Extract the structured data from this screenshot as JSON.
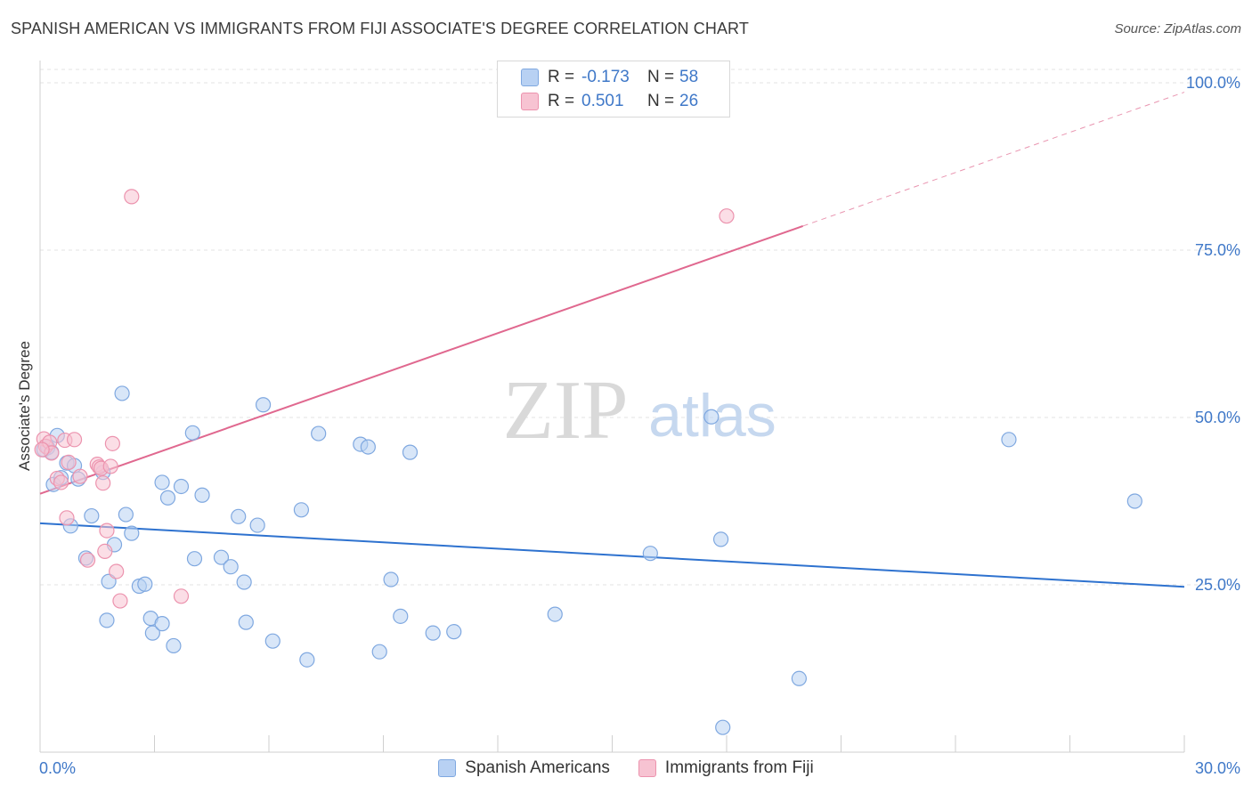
{
  "title": "SPANISH AMERICAN VS IMMIGRANTS FROM FIJI ASSOCIATE'S DEGREE CORRELATION CHART",
  "source": "Source: ZipAtlas.com",
  "watermark": {
    "zip": "ZIP",
    "atlas": "atlas"
  },
  "legend_stats": [
    {
      "r_label": "R =",
      "r_value": "-0.173",
      "n_label": "N =",
      "n_value": "58"
    },
    {
      "r_label": "R =",
      "r_value": "0.501",
      "n_label": "N =",
      "n_value": "26"
    }
  ],
  "colors": {
    "blue_fill": "#b8d1f3",
    "blue_stroke": "#7fa8e0",
    "blue_line": "#2e72cf",
    "pink_fill": "#f7c3d2",
    "pink_stroke": "#ec93ae",
    "pink_line": "#e0688f",
    "axis_text": "#3f78c8",
    "grid": "#e3e3e3"
  },
  "chart_data": {
    "type": "scatter",
    "title": "SPANISH AMERICAN VS IMMIGRANTS FROM FIJI ASSOCIATE'S DEGREE CORRELATION CHART",
    "xlabel": "",
    "ylabel": "Associate's Degree",
    "xlim": [
      0,
      30
    ],
    "ylim": [
      0,
      102
    ],
    "x_tick_labels": [
      "0.0%",
      "30.0%"
    ],
    "y_ticks": [
      25,
      50,
      75,
      100
    ],
    "y_tick_labels": [
      "25.0%",
      "50.0%",
      "75.0%",
      "100.0%"
    ],
    "grid": true,
    "legend_position": "bottom",
    "series": [
      {
        "name": "Spanish Americans",
        "color": "#b8d1f3",
        "points": [
          [
            0.1,
            45.2
          ],
          [
            0.2,
            45.5
          ],
          [
            0.3,
            44.8
          ],
          [
            0.35,
            40
          ],
          [
            0.45,
            47.3
          ],
          [
            0.55,
            41
          ],
          [
            0.7,
            43.2
          ],
          [
            0.8,
            33.8
          ],
          [
            0.9,
            42.8
          ],
          [
            1.0,
            40.8
          ],
          [
            1.2,
            29
          ],
          [
            1.35,
            35.3
          ],
          [
            1.65,
            41.8
          ],
          [
            1.75,
            19.7
          ],
          [
            1.8,
            25.5
          ],
          [
            1.95,
            31
          ],
          [
            2.15,
            53.6
          ],
          [
            2.25,
            35.5
          ],
          [
            2.4,
            32.7
          ],
          [
            2.6,
            24.8
          ],
          [
            2.75,
            25.1
          ],
          [
            2.9,
            20
          ],
          [
            2.95,
            17.8
          ],
          [
            3.2,
            19.2
          ],
          [
            3.2,
            40.3
          ],
          [
            3.35,
            38
          ],
          [
            3.5,
            15.9
          ],
          [
            3.7,
            39.7
          ],
          [
            4.0,
            47.7
          ],
          [
            4.05,
            28.9
          ],
          [
            4.25,
            38.4
          ],
          [
            4.75,
            29.1
          ],
          [
            5.0,
            27.7
          ],
          [
            5.2,
            35.2
          ],
          [
            5.35,
            25.4
          ],
          [
            5.4,
            19.4
          ],
          [
            5.7,
            33.9
          ],
          [
            5.85,
            51.9
          ],
          [
            6.1,
            16.6
          ],
          [
            6.85,
            36.2
          ],
          [
            7.0,
            13.8
          ],
          [
            7.3,
            47.6
          ],
          [
            8.4,
            46
          ],
          [
            8.6,
            45.6
          ],
          [
            8.9,
            15
          ],
          [
            9.2,
            25.8
          ],
          [
            9.45,
            20.3
          ],
          [
            9.7,
            44.8
          ],
          [
            10.3,
            17.8
          ],
          [
            10.85,
            18
          ],
          [
            13.5,
            20.6
          ],
          [
            16.0,
            29.7
          ],
          [
            17.6,
            50.1
          ],
          [
            17.85,
            31.8
          ],
          [
            17.9,
            3.7
          ],
          [
            19.9,
            11
          ],
          [
            25.4,
            46.7
          ],
          [
            28.7,
            37.5
          ]
        ]
      },
      {
        "name": "Immigrants from Fiji",
        "color": "#f7c3d2",
        "points": [
          [
            0.1,
            46.8
          ],
          [
            0.15,
            45.7
          ],
          [
            0.25,
            46.3
          ],
          [
            0.3,
            44.7
          ],
          [
            0.45,
            40.9
          ],
          [
            0.55,
            40.3
          ],
          [
            0.65,
            46.6
          ],
          [
            0.7,
            35
          ],
          [
            0.75,
            43.3
          ],
          [
            0.9,
            46.7
          ],
          [
            1.05,
            41.2
          ],
          [
            1.25,
            28.7
          ],
          [
            1.5,
            43
          ],
          [
            1.55,
            42.6
          ],
          [
            1.6,
            42.4
          ],
          [
            1.65,
            40.2
          ],
          [
            1.7,
            30
          ],
          [
            1.75,
            33.1
          ],
          [
            1.85,
            42.7
          ],
          [
            1.9,
            46.1
          ],
          [
            2.0,
            27
          ],
          [
            2.1,
            22.6
          ],
          [
            2.4,
            83
          ],
          [
            3.7,
            23.3
          ],
          [
            18.0,
            80.1
          ],
          [
            0.05,
            45.2
          ]
        ]
      }
    ],
    "trend_lines": [
      {
        "series": "Spanish Americans",
        "x": [
          0,
          30
        ],
        "y": [
          34.2,
          24.7
        ],
        "style": "solid"
      },
      {
        "series": "Immigrants from Fiji",
        "x": [
          0,
          20
        ],
        "y": [
          38.6,
          78.6
        ],
        "style": "solid"
      },
      {
        "series": "Immigrants from Fiji",
        "x": [
          20,
          30
        ],
        "y": [
          78.6,
          98.6
        ],
        "style": "dashed"
      }
    ]
  }
}
